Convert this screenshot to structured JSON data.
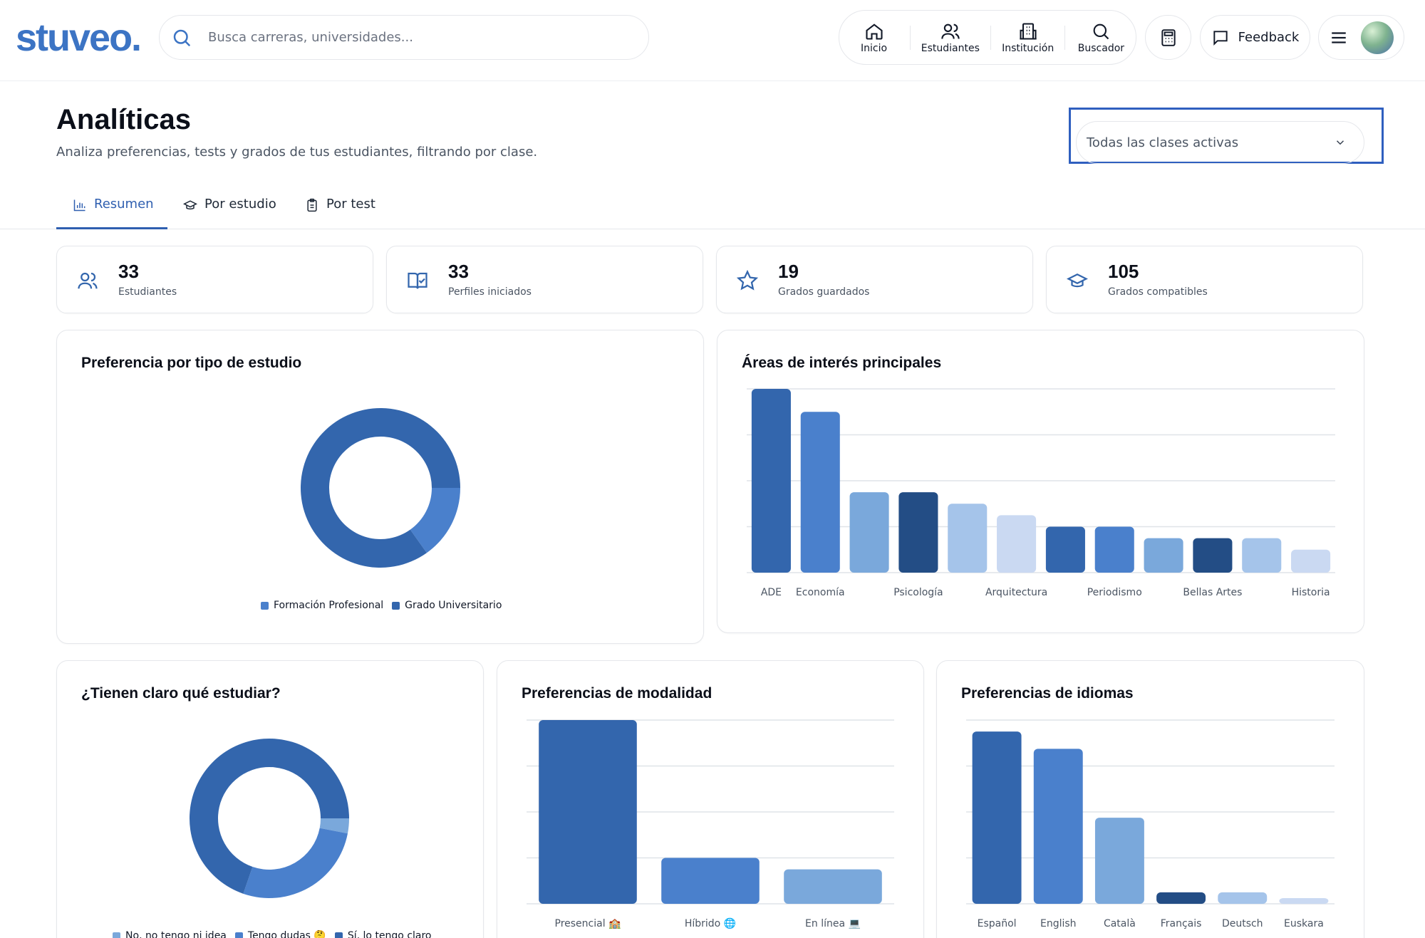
{
  "brand": {
    "logo": "stuveo."
  },
  "search": {
    "placeholder": "Busca carreras, universidades..."
  },
  "nav": {
    "inicio": "Inicio",
    "estudiantes": "Estudiantes",
    "institucion": "Institución",
    "buscador": "Buscador"
  },
  "feedback_label": "Feedback",
  "page": {
    "title": "Analíticas",
    "subtitle": "Analiza preferencias, tests y grados de tus estudiantes, filtrando por clase.",
    "class_select": "Todas las clases activas"
  },
  "tabs": [
    "Resumen",
    "Por estudio",
    "Por test"
  ],
  "stats": [
    {
      "value": "33",
      "label": "Estudiantes",
      "icon": "users-icon"
    },
    {
      "value": "33",
      "label": "Perfiles iniciados",
      "icon": "book-check-icon"
    },
    {
      "value": "19",
      "label": "Grados guardados",
      "icon": "star-icon"
    },
    {
      "value": "105",
      "label": "Grados compatibles",
      "icon": "graduation-cap-icon"
    }
  ],
  "colors": {
    "brand": "#3c74c4",
    "accent_tab": "#2f5fb0",
    "blue_1": "#3366ad",
    "blue_2": "#4a80cc",
    "blue_3": "#7aa8db",
    "blue_4": "#234d85",
    "blue_5": "#a5c4ea",
    "blue_6": "#cad9f2"
  },
  "chart_data": [
    {
      "type": "pie",
      "title": "Preferencia por tipo de estudio",
      "categories": [
        "Formación Profesional",
        "Grado Universitario"
      ],
      "values": [
        5,
        28
      ],
      "colors": [
        "#4a80cc",
        "#3366ad"
      ],
      "legend": "bottom"
    },
    {
      "type": "bar",
      "title": "Áreas de interés principales",
      "categories": [
        "ADE",
        "Economía",
        "",
        "Psicología",
        "",
        "Arquitectura",
        "",
        "Periodismo",
        "",
        "Bellas Artes",
        "",
        "Historia"
      ],
      "values": [
        8,
        7,
        3.5,
        3.5,
        3,
        2.5,
        2,
        2,
        1.5,
        1.5,
        1.5,
        1
      ],
      "colors": [
        "#3366ad",
        "#4a80cc",
        "#7aa8db",
        "#234d85",
        "#a5c4ea",
        "#cad9f2",
        "#3366ad",
        "#4a80cc",
        "#7aa8db",
        "#234d85",
        "#a5c4ea",
        "#cad9f2"
      ],
      "ylim": [
        0,
        8
      ],
      "grid": true
    },
    {
      "type": "pie",
      "title": "¿Tienen claro qué estudiar?",
      "categories": [
        "No, no tengo ni idea",
        "Tengo dudas 🤔",
        "Sí, lo tengo claro"
      ],
      "values": [
        1,
        9,
        23
      ],
      "colors": [
        "#7aa8db",
        "#4a80cc",
        "#3366ad"
      ],
      "legend": "bottom"
    },
    {
      "type": "bar",
      "title": "Preferencias de modalidad",
      "categories": [
        "Presencial 🏫",
        "Híbrido 🌐",
        "En línea 💻"
      ],
      "values": [
        32,
        8,
        6
      ],
      "colors": [
        "#3366ad",
        "#4a80cc",
        "#7aa8db"
      ],
      "ylim": [
        0,
        32
      ],
      "grid": true
    },
    {
      "type": "bar",
      "title": "Preferencias de idiomas",
      "categories": [
        "Español",
        "English",
        "Català",
        "Français",
        "Deutsch",
        "Euskara"
      ],
      "values": [
        30,
        27,
        15,
        2,
        2,
        1
      ],
      "colors": [
        "#3366ad",
        "#4a80cc",
        "#7aa8db",
        "#234d85",
        "#a5c4ea",
        "#cad9f2"
      ],
      "ylim": [
        0,
        32
      ],
      "grid": true
    }
  ]
}
